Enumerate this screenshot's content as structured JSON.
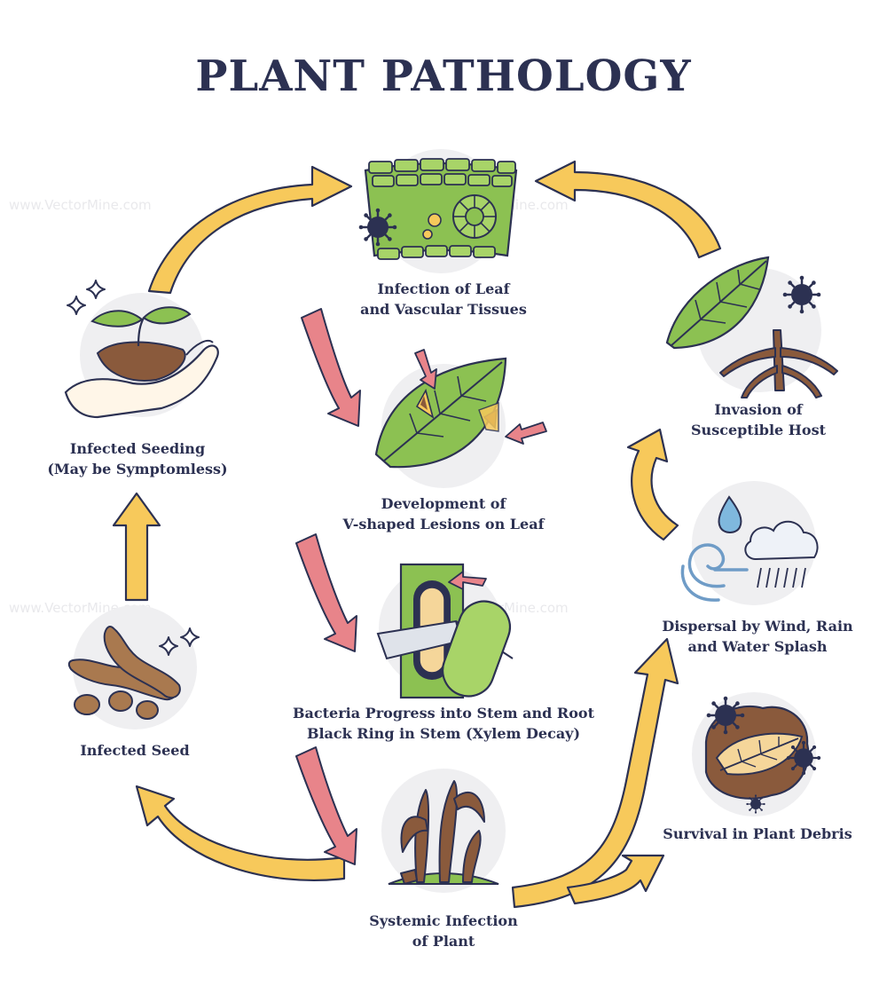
{
  "title": "PLANT PATHOLOGY",
  "watermark": "www.VectorMine.com",
  "stages": {
    "infection": {
      "line1": "Infection of Leaf",
      "line2": "and Vascular Tissues"
    },
    "lesions": {
      "line1": "Development of",
      "line2": "V-shaped Lesions on Leaf"
    },
    "stem": {
      "line1": "Bacteria Progress into Stem and Root",
      "line2": "Black Ring in Stem (Xylem Decay)"
    },
    "systemic": {
      "line1": "Systemic Infection",
      "line2": "of Plant"
    },
    "seeding": {
      "line1": "Infected Seeding",
      "line2": "(May be Symptomless)"
    },
    "seed": {
      "line1": "Infected Seed"
    },
    "invasion": {
      "line1": "Invasion of",
      "line2": "Susceptible Host"
    },
    "dispersal": {
      "line1": "Dispersal by Wind, Rain",
      "line2": "and Water Splash"
    },
    "debris": {
      "line1": "Survival in Plant Debris"
    }
  },
  "colors": {
    "title": "#2c3152",
    "cycle_arrow": "#f7c95b",
    "progress_arrow": "#e8848a",
    "outline": "#2c3152",
    "leaf_green": "#8cc152",
    "bacteria": "#2c3152"
  }
}
